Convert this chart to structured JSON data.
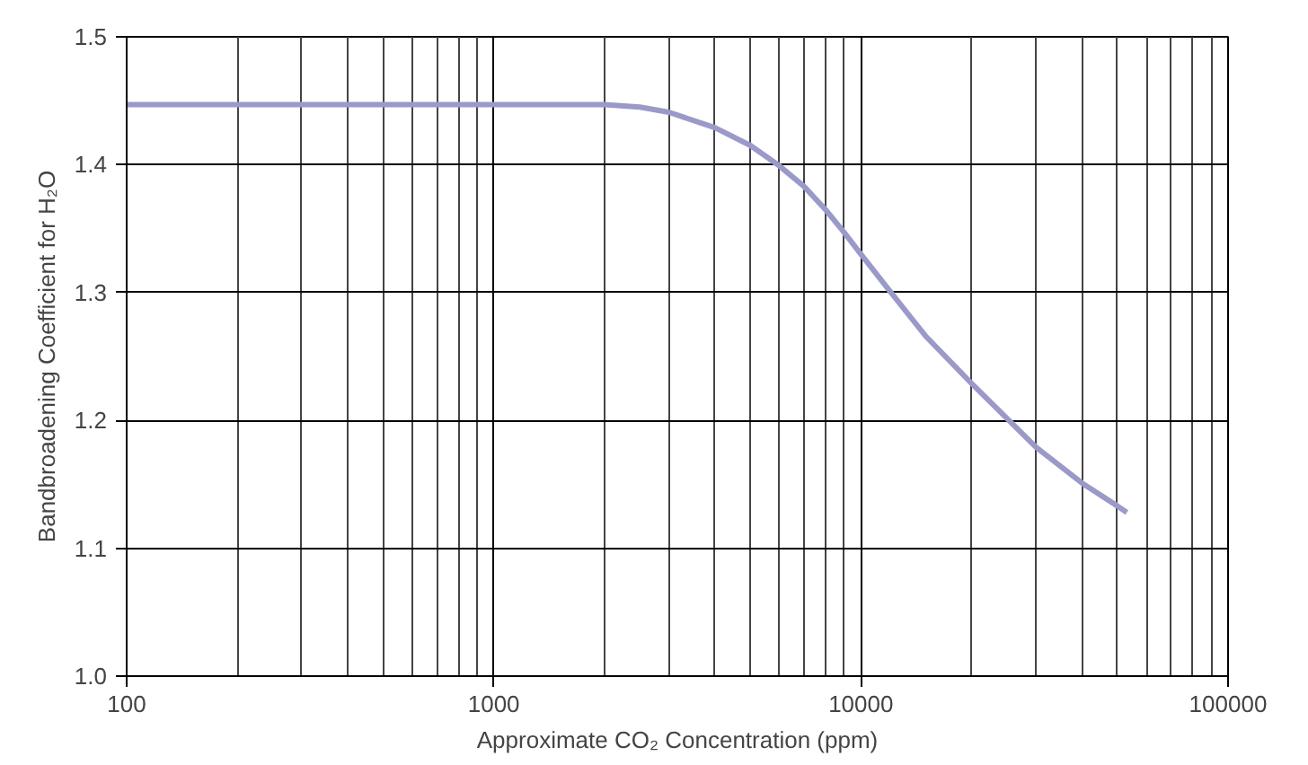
{
  "chart_data": {
    "type": "line",
    "xlabel": "Approximate CO₂ Concentration (ppm)",
    "ylabel": "Bandbroadening Coefficient for H₂O",
    "log": "x",
    "grid": true,
    "x": [
      100,
      1500,
      2000,
      2500,
      3000,
      4000,
      5000,
      6000,
      7000,
      8000,
      9000,
      10000,
      12000,
      15000,
      20000,
      30000,
      40000,
      50000,
      53000
    ],
    "series": [
      {
        "color": "#9999cc",
        "values": [
          1.447,
          1.447,
          1.447,
          1.445,
          1.441,
          1.429,
          1.415,
          1.399,
          1.383,
          1.365,
          1.347,
          1.33,
          1.301,
          1.266,
          1.229,
          1.179,
          1.151,
          1.133,
          1.128
        ]
      }
    ],
    "xlim": [
      100,
      100000
    ],
    "xticks": [
      100,
      1000,
      10000,
      100000
    ],
    "ylim": [
      1.0,
      1.5
    ],
    "yticks": [
      {
        "value": 1.0,
        "label": "1.0"
      },
      {
        "value": 1.1,
        "label": "1.1"
      },
      {
        "value": 1.2,
        "label": "1.2"
      },
      {
        "value": 1.3,
        "label": "1.3"
      },
      {
        "value": 1.4,
        "label": "1.4"
      },
      {
        "value": 1.5,
        "label": "1.5"
      }
    ]
  }
}
